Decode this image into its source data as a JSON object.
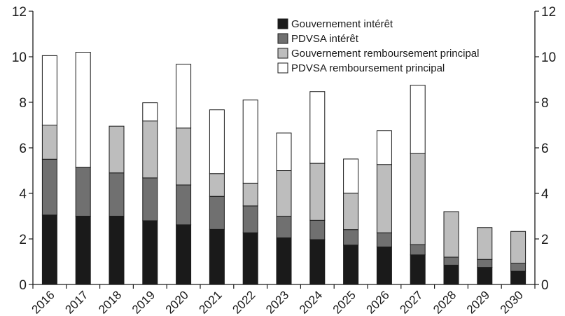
{
  "chart_data": {
    "type": "bar",
    "stacked": true,
    "categories": [
      "2016",
      "2017",
      "2018",
      "2019",
      "2020",
      "2021",
      "2022",
      "2023",
      "2024",
      "2025",
      "2026",
      "2027",
      "2028",
      "2029",
      "2030"
    ],
    "series": [
      {
        "name": "Gouvernement intérêt",
        "color": "#1a1a1a",
        "values": [
          3.05,
          3.0,
          3.0,
          2.8,
          2.62,
          2.42,
          2.27,
          2.05,
          1.97,
          1.73,
          1.65,
          1.3,
          0.85,
          0.75,
          0.58
        ]
      },
      {
        "name": "PDVSA intérêt",
        "color": "#707070",
        "values": [
          2.45,
          2.15,
          1.9,
          1.88,
          1.75,
          1.45,
          1.18,
          0.95,
          0.85,
          0.68,
          0.62,
          0.45,
          0.35,
          0.35,
          0.35
        ]
      },
      {
        "name": "Gouvernement remboursement principal",
        "color": "#bdbdbd",
        "values": [
          1.5,
          0.0,
          2.05,
          2.5,
          2.5,
          1.0,
          1.0,
          2.0,
          2.5,
          1.6,
          3.0,
          4.0,
          2.0,
          1.4,
          1.4
        ]
      },
      {
        "name": "PDVSA remboursement principal",
        "color": "#ffffff",
        "values": [
          3.05,
          5.05,
          0.0,
          0.8,
          2.8,
          2.8,
          3.65,
          1.65,
          3.15,
          1.5,
          1.48,
          3.0,
          0.0,
          0.0,
          0.0
        ]
      }
    ],
    "ylim": [
      0,
      12
    ],
    "yticks": [
      "0",
      "2",
      "4",
      "6",
      "8",
      "10",
      "12"
    ],
    "title": "",
    "xlabel": "",
    "ylabel": "",
    "grid": false,
    "legend_position": "top-right",
    "secondary_y_axis": true
  }
}
